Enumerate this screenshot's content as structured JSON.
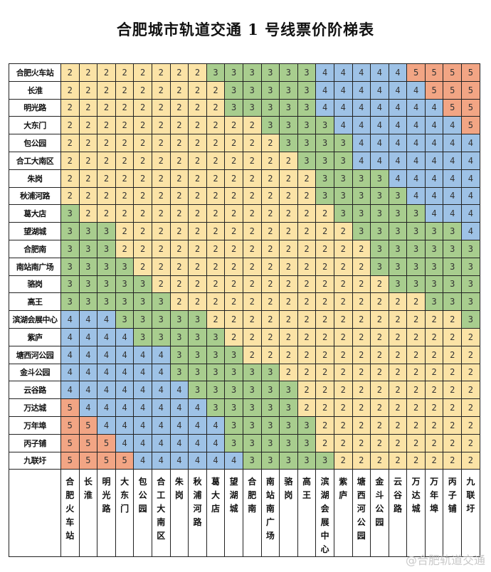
{
  "title": "合肥城市轨道交通 1 号线票价阶梯表",
  "colors": {
    "2": "#fbe3a6",
    "3": "#a8cd8e",
    "4": "#9ec2e6",
    "5": "#f2a584"
  },
  "stations": [
    "合肥火车站",
    "长淮",
    "明光路",
    "大东门",
    "包公园",
    "合工大南区",
    "朱岗",
    "秋浦河路",
    "葛大店",
    "望湖城",
    "合肥南",
    "南站南广场",
    "骆岗",
    "高王",
    "滨湖会展中心",
    "紫庐",
    "塘西河公园",
    "金斗公园",
    "云谷路",
    "万达城",
    "万年埠",
    "丙子铺",
    "九联圩"
  ],
  "fares": [
    [
      2,
      2,
      2,
      2,
      2,
      2,
      2,
      2,
      3,
      3,
      3,
      3,
      3,
      3,
      4,
      4,
      4,
      4,
      4,
      5,
      5,
      5,
      5
    ],
    [
      2,
      2,
      2,
      2,
      2,
      2,
      2,
      2,
      2,
      3,
      3,
      3,
      3,
      3,
      4,
      4,
      4,
      4,
      4,
      4,
      5,
      5,
      5
    ],
    [
      2,
      2,
      2,
      2,
      2,
      2,
      2,
      2,
      2,
      3,
      3,
      3,
      3,
      3,
      4,
      4,
      4,
      4,
      4,
      4,
      4,
      5,
      5
    ],
    [
      2,
      2,
      2,
      2,
      2,
      2,
      2,
      2,
      2,
      2,
      2,
      3,
      3,
      3,
      3,
      4,
      4,
      4,
      4,
      4,
      4,
      4,
      5
    ],
    [
      2,
      2,
      2,
      2,
      2,
      2,
      2,
      2,
      2,
      2,
      2,
      2,
      3,
      3,
      3,
      3,
      4,
      4,
      4,
      4,
      4,
      4,
      4
    ],
    [
      2,
      2,
      2,
      2,
      2,
      2,
      2,
      2,
      2,
      2,
      2,
      2,
      2,
      3,
      3,
      3,
      4,
      4,
      4,
      4,
      4,
      4,
      4
    ],
    [
      2,
      2,
      2,
      2,
      2,
      2,
      2,
      2,
      2,
      2,
      2,
      2,
      2,
      2,
      3,
      3,
      3,
      3,
      4,
      4,
      4,
      4,
      4
    ],
    [
      2,
      2,
      2,
      2,
      2,
      2,
      2,
      2,
      2,
      2,
      2,
      2,
      2,
      2,
      3,
      3,
      3,
      3,
      3,
      4,
      4,
      4,
      4
    ],
    [
      3,
      2,
      2,
      2,
      2,
      2,
      2,
      2,
      2,
      2,
      2,
      2,
      2,
      2,
      2,
      3,
      3,
      3,
      3,
      3,
      4,
      4,
      4
    ],
    [
      3,
      3,
      3,
      2,
      2,
      2,
      2,
      2,
      2,
      2,
      2,
      2,
      2,
      2,
      2,
      2,
      3,
      3,
      3,
      3,
      3,
      3,
      4
    ],
    [
      3,
      3,
      3,
      2,
      2,
      2,
      2,
      2,
      2,
      2,
      2,
      2,
      2,
      2,
      2,
      2,
      2,
      3,
      3,
      3,
      3,
      3,
      3
    ],
    [
      3,
      3,
      3,
      3,
      2,
      2,
      2,
      2,
      2,
      2,
      2,
      2,
      2,
      2,
      2,
      2,
      2,
      3,
      3,
      3,
      3,
      3,
      3
    ],
    [
      3,
      3,
      3,
      3,
      3,
      2,
      2,
      2,
      2,
      2,
      2,
      2,
      2,
      2,
      2,
      2,
      2,
      2,
      3,
      3,
      3,
      3,
      3
    ],
    [
      3,
      3,
      3,
      3,
      3,
      3,
      2,
      2,
      2,
      2,
      2,
      2,
      2,
      2,
      2,
      2,
      2,
      2,
      2,
      2,
      3,
      3,
      3
    ],
    [
      4,
      4,
      4,
      3,
      3,
      3,
      3,
      3,
      2,
      2,
      2,
      2,
      2,
      2,
      2,
      2,
      2,
      2,
      2,
      2,
      2,
      2,
      3
    ],
    [
      4,
      4,
      4,
      4,
      3,
      3,
      3,
      3,
      3,
      2,
      2,
      2,
      2,
      2,
      2,
      2,
      2,
      2,
      2,
      2,
      2,
      2,
      2
    ],
    [
      4,
      4,
      4,
      4,
      4,
      4,
      3,
      3,
      3,
      3,
      2,
      2,
      2,
      2,
      2,
      2,
      2,
      2,
      2,
      2,
      2,
      2,
      2
    ],
    [
      4,
      4,
      4,
      4,
      4,
      4,
      3,
      3,
      3,
      3,
      3,
      3,
      2,
      2,
      2,
      2,
      2,
      2,
      2,
      2,
      2,
      2,
      2
    ],
    [
      4,
      4,
      4,
      4,
      4,
      4,
      4,
      3,
      3,
      3,
      3,
      3,
      3,
      2,
      2,
      2,
      2,
      2,
      2,
      2,
      2,
      2,
      2
    ],
    [
      5,
      4,
      4,
      4,
      4,
      4,
      4,
      4,
      3,
      3,
      3,
      3,
      3,
      2,
      2,
      2,
      2,
      2,
      2,
      2,
      2,
      2,
      2
    ],
    [
      5,
      5,
      4,
      4,
      4,
      4,
      4,
      4,
      4,
      3,
      3,
      3,
      3,
      3,
      2,
      2,
      2,
      2,
      2,
      2,
      2,
      2,
      2
    ],
    [
      5,
      5,
      5,
      4,
      4,
      4,
      4,
      4,
      4,
      3,
      3,
      3,
      3,
      3,
      2,
      2,
      2,
      2,
      2,
      2,
      2,
      2,
      2
    ],
    [
      5,
      5,
      5,
      5,
      4,
      4,
      4,
      4,
      4,
      4,
      3,
      3,
      3,
      3,
      3,
      2,
      2,
      2,
      2,
      2,
      2,
      2,
      2
    ]
  ],
  "watermark": "@合肥轨道交通"
}
